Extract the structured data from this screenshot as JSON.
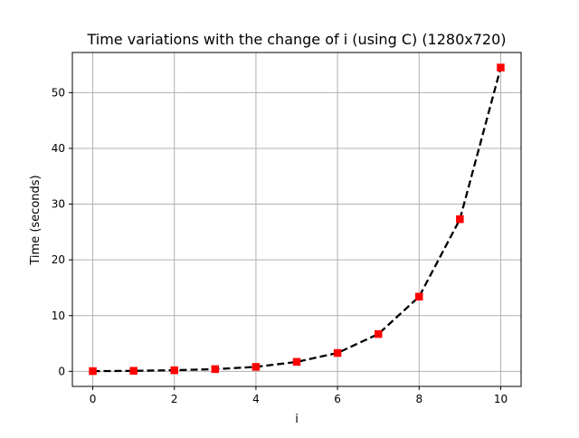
{
  "chart_data": {
    "type": "line",
    "title": "Time variations with the change of i (using C) (1280x720)",
    "xlabel": "i",
    "ylabel": "Time (seconds)",
    "x": [
      0,
      1,
      2,
      3,
      4,
      5,
      6,
      7,
      8,
      9,
      10
    ],
    "series": [
      {
        "values": [
          0.05,
          0.1,
          0.2,
          0.4,
          0.8,
          1.7,
          3.3,
          6.7,
          13.4,
          27.3,
          54.5
        ],
        "line_color": "#000000",
        "line_style": "dashed",
        "marker": "square",
        "marker_color": "#ff0000"
      }
    ],
    "xlim": [
      -0.5,
      10.5
    ],
    "ylim": [
      -2.7,
      57.2
    ],
    "xticks": [
      0,
      2,
      4,
      6,
      8,
      10
    ],
    "yticks": [
      0,
      10,
      20,
      30,
      40,
      50
    ],
    "grid": true
  }
}
